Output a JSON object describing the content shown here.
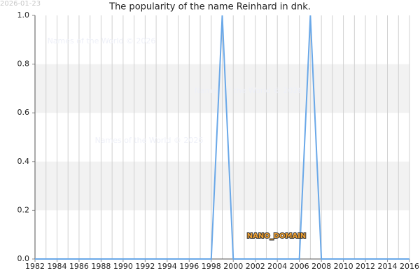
{
  "date_stamp": "2026-01-23",
  "watermark": "Names of the World © 2026",
  "chart_data": {
    "type": "line",
    "title": "The popularity of the name Reinhard in dnk.",
    "annotation": "NANO_DOMAIN",
    "x": [
      1982,
      1983,
      1984,
      1985,
      1986,
      1987,
      1988,
      1989,
      1990,
      1991,
      1992,
      1993,
      1994,
      1995,
      1996,
      1997,
      1998,
      1999,
      2000,
      2001,
      2002,
      2003,
      2004,
      2005,
      2006,
      2007,
      2008,
      2009,
      2010,
      2011,
      2012,
      2013,
      2014,
      2015,
      2016
    ],
    "series": [
      {
        "color": "#6aa8e8",
        "values": [
          0,
          0,
          0,
          0,
          0,
          0,
          0,
          0,
          0,
          0,
          0,
          0,
          0,
          0,
          0,
          0,
          0,
          1,
          0,
          0,
          0,
          0,
          0,
          0,
          0,
          1,
          0,
          0,
          0,
          0,
          0,
          0,
          0,
          0,
          0
        ]
      }
    ],
    "xlim": [
      1982,
      2016
    ],
    "xticks": [
      1982,
      1984,
      1986,
      1988,
      1990,
      1992,
      1994,
      1996,
      1998,
      2000,
      2002,
      2004,
      2006,
      2008,
      2010,
      2012,
      2014,
      2016
    ],
    "ylim": [
      0,
      1
    ],
    "yticks": [
      {
        "value": 0,
        "label": "0.0"
      },
      0.2,
      0.4,
      0.6,
      0.8,
      {
        "value": 1,
        "label": "1.0"
      }
    ],
    "grid": true
  }
}
